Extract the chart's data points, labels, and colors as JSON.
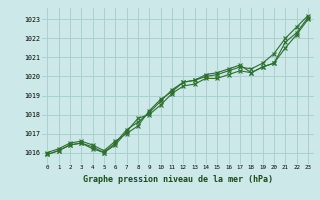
{
  "title": "Graphe pression niveau de la mer (hPa)",
  "background_color": "#cce8e8",
  "grid_color": "#aad0d0",
  "line_color": "#2d6e2d",
  "xlim": [
    -0.5,
    23.5
  ],
  "ylim": [
    1015.4,
    1023.6
  ],
  "yticks": [
    1016,
    1017,
    1018,
    1019,
    1020,
    1021,
    1022,
    1023
  ],
  "xticks": [
    0,
    1,
    2,
    3,
    4,
    5,
    6,
    7,
    8,
    9,
    10,
    11,
    12,
    13,
    14,
    15,
    16,
    17,
    18,
    19,
    20,
    21,
    22,
    23
  ],
  "series": [
    [
      1015.9,
      1016.1,
      1016.4,
      1016.5,
      1016.3,
      1016.0,
      1016.4,
      1017.1,
      1017.8,
      1018.0,
      1018.5,
      1019.1,
      1019.5,
      1019.6,
      1019.9,
      1019.9,
      1020.1,
      1020.3,
      1020.2,
      1020.5,
      1020.7,
      1021.8,
      1022.3,
      1023.1
    ],
    [
      1016.0,
      1016.2,
      1016.5,
      1016.6,
      1016.4,
      1016.1,
      1016.6,
      1017.0,
      1017.4,
      1018.2,
      1018.8,
      1019.2,
      1019.7,
      1019.8,
      1020.0,
      1020.1,
      1020.3,
      1020.5,
      1020.4,
      1020.7,
      1021.2,
      1022.0,
      1022.6,
      1023.2
    ],
    [
      1015.9,
      1016.1,
      1016.4,
      1016.5,
      1016.2,
      1016.0,
      1016.5,
      1017.2,
      1017.6,
      1018.1,
      1018.7,
      1019.3,
      1019.7,
      1019.8,
      1020.1,
      1020.2,
      1020.4,
      1020.6,
      1020.2,
      1020.5,
      1020.7,
      1021.5,
      1022.2,
      1023.0
    ]
  ],
  "ylabel_fontsize": 5,
  "xlabel_fontsize": 5,
  "title_fontsize": 6
}
